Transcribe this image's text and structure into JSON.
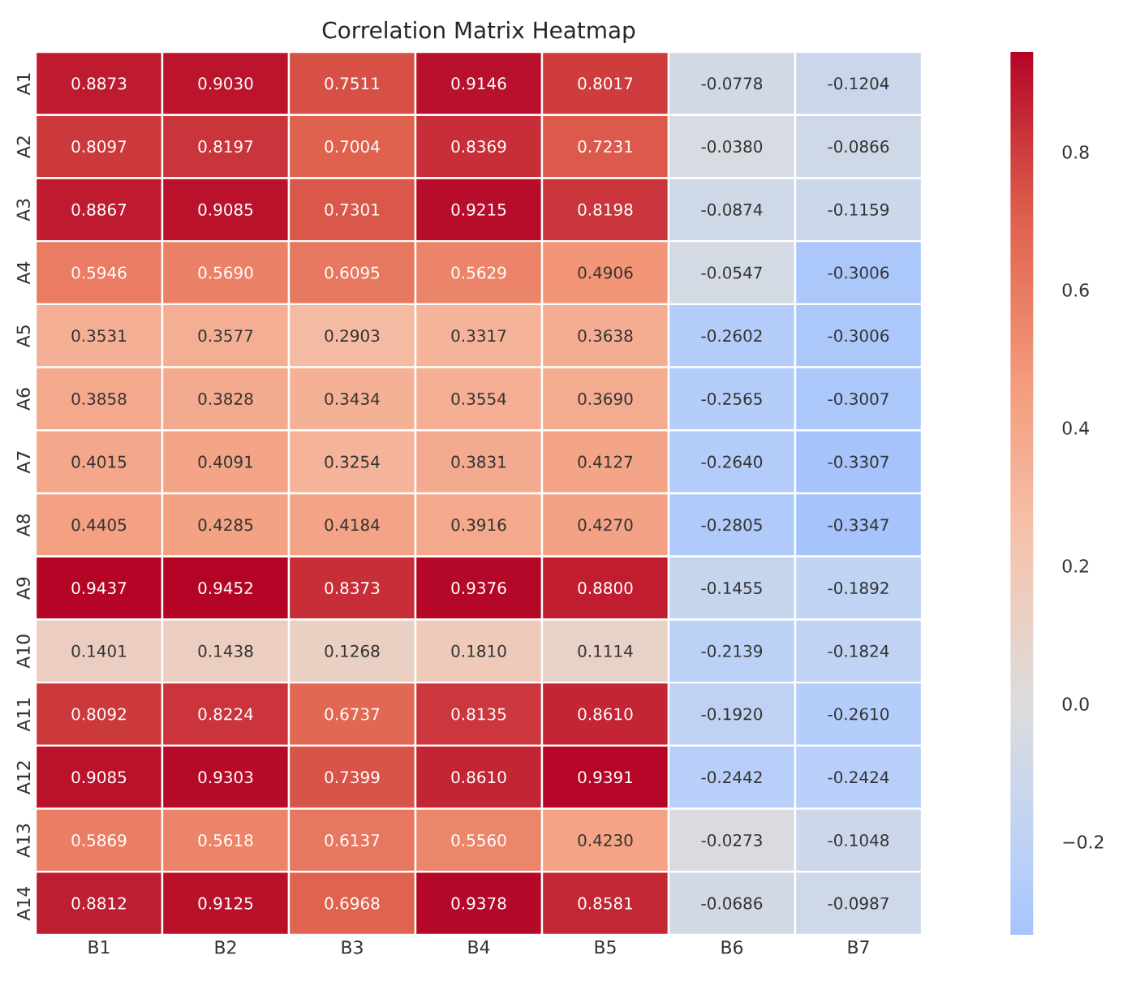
{
  "chart_data": {
    "type": "heatmap",
    "title": "Correlation Matrix Heatmap",
    "categories": [
      "B1",
      "B2",
      "B3",
      "B4",
      "B5",
      "B6",
      "B7"
    ],
    "y_categories": [
      "A1",
      "A2",
      "A3",
      "A4",
      "A5",
      "A6",
      "A7",
      "A8",
      "A9",
      "A10",
      "A11",
      "A12",
      "A13",
      "A14"
    ],
    "cells": [
      [
        0.8873,
        0.903,
        0.7511,
        0.9146,
        0.8017,
        -0.0778,
        -0.1204
      ],
      [
        0.8097,
        0.8197,
        0.7004,
        0.8369,
        0.7231,
        -0.038,
        -0.0866
      ],
      [
        0.8867,
        0.9085,
        0.7301,
        0.9215,
        0.8198,
        -0.0874,
        -0.1159
      ],
      [
        0.5946,
        0.569,
        0.6095,
        0.5629,
        0.4906,
        -0.0547,
        -0.3006
      ],
      [
        0.3531,
        0.3577,
        0.2903,
        0.3317,
        0.3638,
        -0.2602,
        -0.3006
      ],
      [
        0.3858,
        0.3828,
        0.3434,
        0.3554,
        0.369,
        -0.2565,
        -0.3007
      ],
      [
        0.4015,
        0.4091,
        0.3254,
        0.3831,
        0.4127,
        -0.264,
        -0.3307
      ],
      [
        0.4405,
        0.4285,
        0.4184,
        0.3916,
        0.427,
        -0.2805,
        -0.3347
      ],
      [
        0.9437,
        0.9452,
        0.8373,
        0.9376,
        0.88,
        -0.1455,
        -0.1892
      ],
      [
        0.1401,
        0.1438,
        0.1268,
        0.181,
        0.1114,
        -0.2139,
        -0.1824
      ],
      [
        0.8092,
        0.8224,
        0.6737,
        0.8135,
        0.861,
        -0.192,
        -0.261
      ],
      [
        0.9085,
        0.9303,
        0.7399,
        0.861,
        0.9391,
        -0.2442,
        -0.2424
      ],
      [
        0.5869,
        0.5618,
        0.6137,
        0.556,
        0.423,
        -0.0273,
        -0.1048
      ],
      [
        0.8812,
        0.9125,
        0.6968,
        0.9378,
        0.8581,
        -0.0686,
        -0.0987
      ]
    ],
    "cell_labels": [
      [
        "0.8873",
        "0.9030",
        "0.7511",
        "0.9146",
        "0.8017",
        "-0.0778",
        "-0.1204"
      ],
      [
        "0.8097",
        "0.8197",
        "0.7004",
        "0.8369",
        "0.7231",
        "-0.0380",
        "-0.0866"
      ],
      [
        "0.8867",
        "0.9085",
        "0.7301",
        "0.9215",
        "0.8198",
        "-0.0874",
        "-0.1159"
      ],
      [
        "0.5946",
        "0.5690",
        "0.6095",
        "0.5629",
        "0.4906",
        "-0.0547",
        "-0.3006"
      ],
      [
        "0.3531",
        "0.3577",
        "0.2903",
        "0.3317",
        "0.3638",
        "-0.2602",
        "-0.3006"
      ],
      [
        "0.3858",
        "0.3828",
        "0.3434",
        "0.3554",
        "0.3690",
        "-0.2565",
        "-0.3007"
      ],
      [
        "0.4015",
        "0.4091",
        "0.3254",
        "0.3831",
        "0.4127",
        "-0.2640",
        "-0.3307"
      ],
      [
        "0.4405",
        "0.4285",
        "0.4184",
        "0.3916",
        "0.4270",
        "-0.2805",
        "-0.3347"
      ],
      [
        "0.9437",
        "0.9452",
        "0.8373",
        "0.9376",
        "0.8800",
        "-0.1455",
        "-0.1892"
      ],
      [
        "0.1401",
        "0.1438",
        "0.1268",
        "0.1810",
        "0.1114",
        "-0.2139",
        "-0.1824"
      ],
      [
        "0.8092",
        "0.8224",
        "0.6737",
        "0.8135",
        "0.8610",
        "-0.1920",
        "-0.2610"
      ],
      [
        "0.9085",
        "0.9303",
        "0.7399",
        "0.8610",
        "0.9391",
        "-0.2442",
        "-0.2424"
      ],
      [
        "0.5869",
        "0.5618",
        "0.6137",
        "0.5560",
        "0.4230",
        "-0.0273",
        "-0.1048"
      ],
      [
        "0.8812",
        "0.9125",
        "0.6968",
        "0.9378",
        "0.8581",
        "-0.0686",
        "-0.0987"
      ]
    ],
    "clim": [
      -0.3347,
      0.9452
    ],
    "cticks": [
      {
        "value": -0.2,
        "label": "−0.2"
      },
      {
        "value": 0,
        "label": "0.0"
      },
      0.2,
      0.4,
      0.6,
      0.8
    ]
  }
}
